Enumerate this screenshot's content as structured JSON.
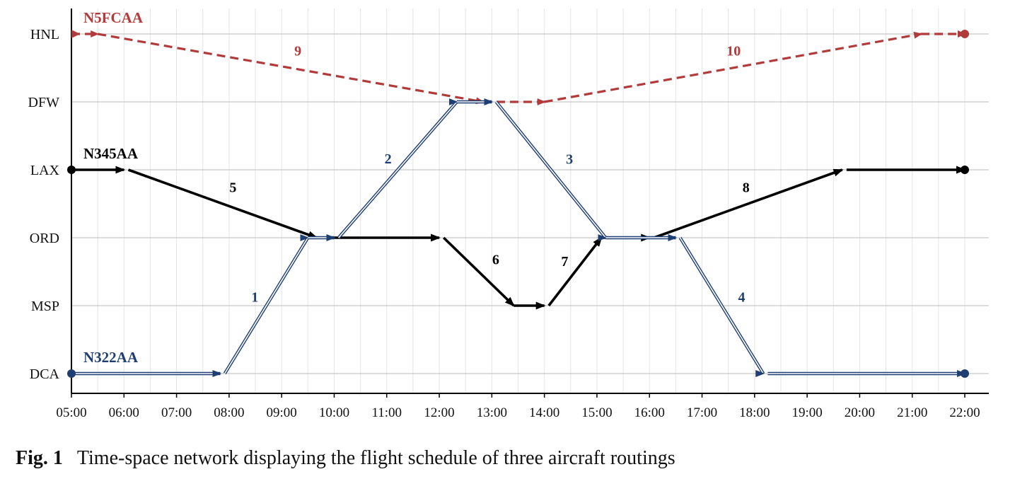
{
  "chart_data": {
    "type": "line",
    "title": "",
    "xlabel": "",
    "ylabel": "",
    "x_ticks": [
      "05:00",
      "06:00",
      "07:00",
      "08:00",
      "09:00",
      "10:00",
      "11:00",
      "12:00",
      "13:00",
      "14:00",
      "15:00",
      "16:00",
      "17:00",
      "18:00",
      "19:00",
      "20:00",
      "21:00",
      "22:00"
    ],
    "y_categories": [
      "HNL",
      "DFW",
      "LAX",
      "ORD",
      "MSP",
      "DCA"
    ],
    "x_range": [
      "05:00",
      "22:00"
    ],
    "grid": true,
    "series": [
      {
        "name": "N5FCAA",
        "color": "#b23a3a",
        "style": "dashed",
        "segments": [
          {
            "kind": "ground",
            "from": [
              "05:00",
              "HNL"
            ],
            "to": [
              "05:30",
              "HNL"
            ]
          },
          {
            "kind": "flight",
            "label": "9",
            "from": [
              "05:30",
              "HNL"
            ],
            "to": [
              "12:50",
              "DFW"
            ]
          },
          {
            "kind": "ground",
            "from": [
              "12:50",
              "DFW"
            ],
            "to": [
              "14:00",
              "DFW"
            ]
          },
          {
            "kind": "flight",
            "label": "10",
            "from": [
              "14:00",
              "DFW"
            ],
            "to": [
              "21:10",
              "HNL"
            ]
          },
          {
            "kind": "ground",
            "from": [
              "21:10",
              "HNL"
            ],
            "to": [
              "22:00",
              "HNL"
            ]
          }
        ]
      },
      {
        "name": "N345AA",
        "color": "#000000",
        "style": "solid",
        "segments": [
          {
            "kind": "ground",
            "from": [
              "05:00",
              "LAX"
            ],
            "to": [
              "06:00",
              "LAX"
            ]
          },
          {
            "kind": "flight",
            "label": "5",
            "from": [
              "06:05",
              "LAX"
            ],
            "to": [
              "09:40",
              "ORD"
            ]
          },
          {
            "kind": "ground",
            "from": [
              "09:40",
              "ORD"
            ],
            "to": [
              "12:00",
              "ORD"
            ]
          },
          {
            "kind": "flight",
            "label": "6",
            "from": [
              "12:05",
              "ORD"
            ],
            "to": [
              "13:25",
              "MSP"
            ]
          },
          {
            "kind": "ground",
            "from": [
              "13:25",
              "MSP"
            ],
            "to": [
              "14:00",
              "MSP"
            ]
          },
          {
            "kind": "flight",
            "label": "7",
            "from": [
              "14:05",
              "MSP"
            ],
            "to": [
              "15:05",
              "ORD"
            ]
          },
          {
            "kind": "ground",
            "from": [
              "15:05",
              "ORD"
            ],
            "to": [
              "16:00",
              "ORD"
            ]
          },
          {
            "kind": "flight",
            "label": "8",
            "from": [
              "16:05",
              "ORD"
            ],
            "to": [
              "19:40",
              "LAX"
            ]
          },
          {
            "kind": "ground",
            "from": [
              "19:45",
              "LAX"
            ],
            "to": [
              "22:00",
              "LAX"
            ]
          }
        ]
      },
      {
        "name": "N322AA",
        "color": "#1f3f73",
        "style": "double",
        "segments": [
          {
            "kind": "ground",
            "from": [
              "05:00",
              "DCA"
            ],
            "to": [
              "07:50",
              "DCA"
            ]
          },
          {
            "kind": "flight",
            "label": "1",
            "from": [
              "07:55",
              "DCA"
            ],
            "to": [
              "09:30",
              "ORD"
            ]
          },
          {
            "kind": "ground",
            "from": [
              "09:30",
              "ORD"
            ],
            "to": [
              "10:00",
              "ORD"
            ]
          },
          {
            "kind": "flight",
            "label": "2",
            "from": [
              "10:05",
              "ORD"
            ],
            "to": [
              "12:20",
              "DFW"
            ]
          },
          {
            "kind": "ground",
            "from": [
              "12:20",
              "DFW"
            ],
            "to": [
              "13:00",
              "DFW"
            ]
          },
          {
            "kind": "flight",
            "label": "3",
            "from": [
              "13:05",
              "DFW"
            ],
            "to": [
              "15:10",
              "ORD"
            ]
          },
          {
            "kind": "ground",
            "from": [
              "15:10",
              "ORD"
            ],
            "to": [
              "16:30",
              "ORD"
            ]
          },
          {
            "kind": "flight",
            "label": "4",
            "from": [
              "16:35",
              "ORD"
            ],
            "to": [
              "18:10",
              "DCA"
            ]
          },
          {
            "kind": "ground",
            "from": [
              "18:15",
              "DCA"
            ],
            "to": [
              "22:00",
              "DCA"
            ]
          }
        ]
      }
    ]
  },
  "caption": {
    "label": "Fig. 1",
    "text": "Time-space network displaying the flight schedule of three aircraft routings"
  }
}
